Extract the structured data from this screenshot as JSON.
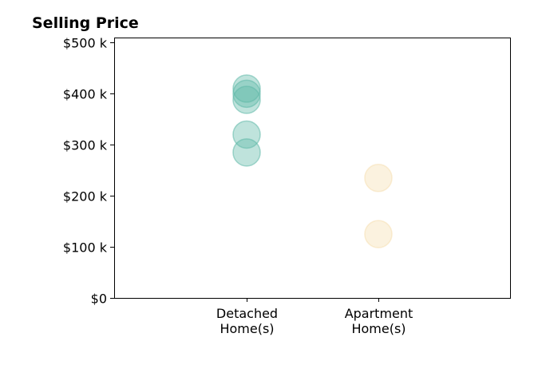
{
  "chart_data": {
    "type": "scatter",
    "title": "Selling Price",
    "xlabel": "",
    "ylabel": "",
    "categories": [
      "Detached\nHome(s)",
      "Apartment\nHome(s)"
    ],
    "ylim": [
      0,
      510000
    ],
    "y_ticks": [
      0,
      100000,
      200000,
      300000,
      400000,
      500000
    ],
    "y_tick_labels": [
      "$0",
      "$100 k",
      "$200 k",
      "$300 k",
      "$400 k",
      "$500 k"
    ],
    "grid": false,
    "series": [
      {
        "category": "Detached\nHome(s)",
        "color": "#5fb8a8",
        "values": [
          410000,
          400000,
          388000,
          320000,
          285000
        ]
      },
      {
        "category": "Apartment\nHome(s)",
        "color": "#f5dfb0",
        "values": [
          235000,
          125000
        ]
      }
    ]
  }
}
